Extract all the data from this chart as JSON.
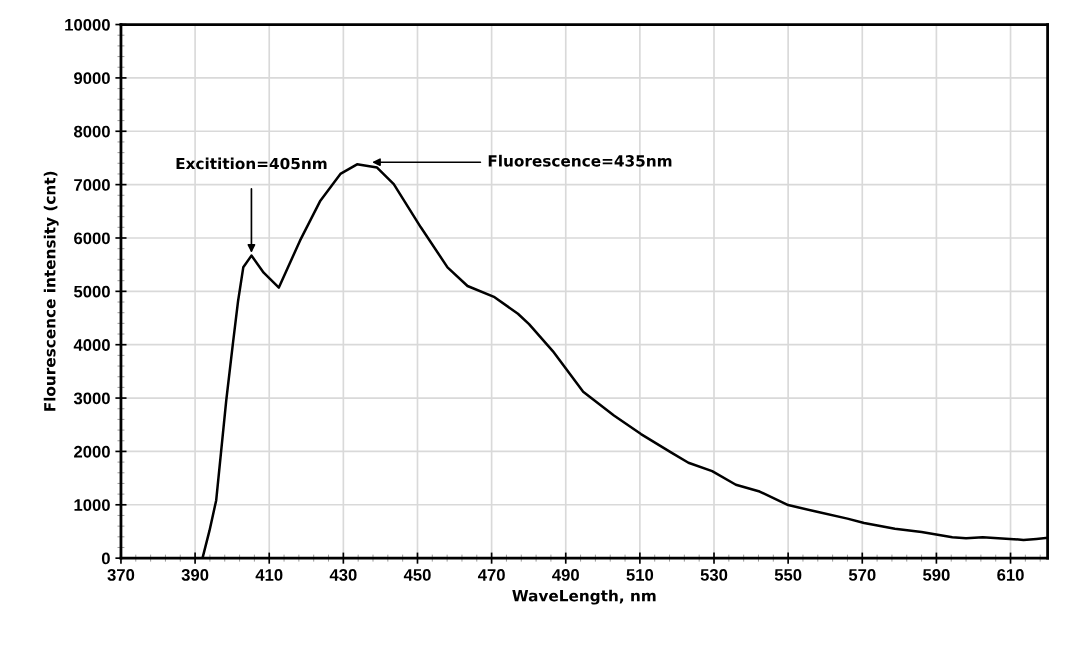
{
  "chart_data": {
    "type": "line",
    "xlabel": "WaveLength, nm",
    "ylabel": "Flourescence intensity (cnt)",
    "x": [
      370,
      380,
      392,
      393.9,
      395.7,
      398.4,
      400.2,
      401.6,
      403,
      405.2,
      408.5,
      412.6,
      418.3,
      423.8,
      429.2,
      433.7,
      439.1,
      443.6,
      450.9,
      458.1,
      463.5,
      470.8,
      477.1,
      480.1,
      486.5,
      494.7,
      503,
      510.3,
      518.5,
      523.1,
      529.5,
      535.9,
      542.3,
      550,
      557.8,
      566,
      570.5,
      578.8,
      586,
      594.3,
      598,
      602.5,
      609.8,
      613.5,
      617,
      620
    ],
    "series": [
      {
        "color": "#000000",
        "values": [
          0,
          0,
          0,
          520,
          1085,
          2950,
          4020,
          4820,
          5450,
          5670,
          5350,
          5070,
          5950,
          6700,
          7200,
          7380,
          7320,
          7010,
          6200,
          5450,
          5100,
          4890,
          4580,
          4385,
          3880,
          3120,
          2675,
          2325,
          1977,
          1787,
          1630,
          1375,
          1248,
          995,
          868,
          741,
          659,
          551,
          488,
          393,
          374,
          393,
          361,
          342,
          361,
          380
        ]
      }
    ],
    "xlim": [
      370,
      620
    ],
    "xticks": [
      370,
      390,
      410,
      430,
      450,
      470,
      490,
      510,
      530,
      550,
      570,
      590,
      610
    ],
    "ylim": [
      0,
      10000
    ],
    "yticks": [
      0,
      1000,
      2000,
      3000,
      4000,
      5000,
      6000,
      7000,
      8000,
      9000,
      10000
    ],
    "grid": true,
    "legend": false,
    "marker": "none",
    "line_style": "solid",
    "annotations": [
      {
        "text": "Excitition=405nm",
        "x": 405.2,
        "y": 5670
      },
      {
        "text": "Fluorescence=435nm",
        "x": 437,
        "y": 7420
      }
    ]
  }
}
